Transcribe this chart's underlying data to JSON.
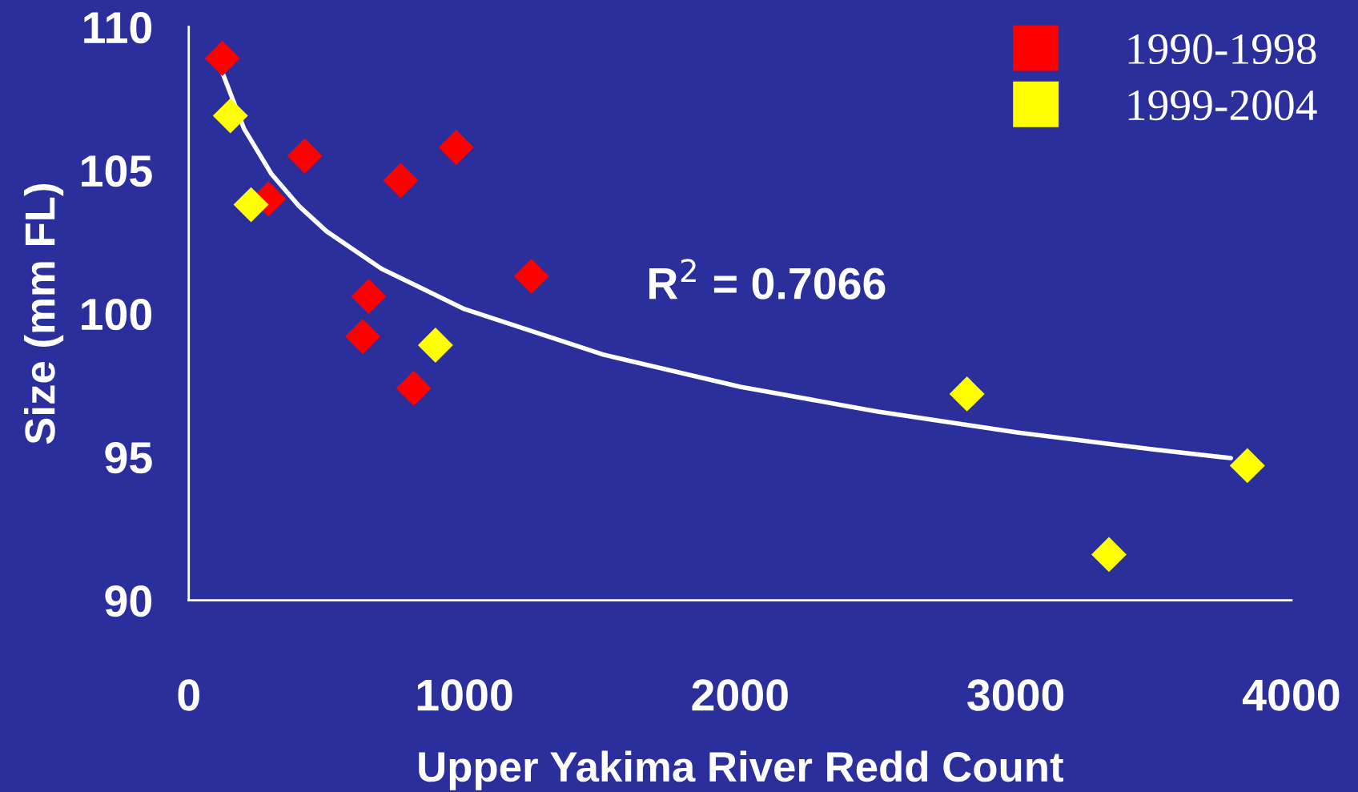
{
  "chart_data": {
    "type": "scatter",
    "xlabel": "Upper Yakima River Redd Count",
    "ylabel": "Size (mm FL)",
    "xlim": [
      0,
      4000
    ],
    "xticks": [
      0,
      1000,
      2000,
      3000,
      4000
    ],
    "ylim": [
      90,
      110
    ],
    "yticks": [
      90,
      95,
      100,
      105,
      110
    ],
    "grid": false,
    "legend": "top right",
    "annotations": [
      "R$^{2}$ = 0.7066"
    ],
    "series": [
      {
        "name": "1990-1998",
        "marker": "diamond",
        "color": "#ff0000",
        "x": [
          122,
          289,
          421,
          769,
          970,
          653,
          631,
          816,
          1243
        ],
        "values": [
          108.9,
          104.0,
          105.5,
          104.65,
          105.8,
          100.6,
          99.2,
          97.4,
          101.3
        ]
      },
      {
        "name": "1999-2004",
        "marker": "diamond",
        "color": "#ffff00",
        "x": [
          151,
          226,
          895,
          2823,
          3840,
          3338
        ],
        "values": [
          106.9,
          103.8,
          98.9,
          97.2,
          94.7,
          91.6
        ]
      },
      {
        "type": "line",
        "color": "#ffffff",
        "x": [
          120,
          200,
          300,
          400,
          500,
          700,
          1000,
          1500,
          2000,
          2500,
          3000,
          3500,
          3780
        ],
        "values": [
          108.46,
          106.46,
          104.87,
          103.75,
          102.87,
          101.56,
          100.16,
          98.58,
          97.45,
          96.58,
          95.86,
          95.26,
          94.96
        ]
      }
    ]
  }
}
